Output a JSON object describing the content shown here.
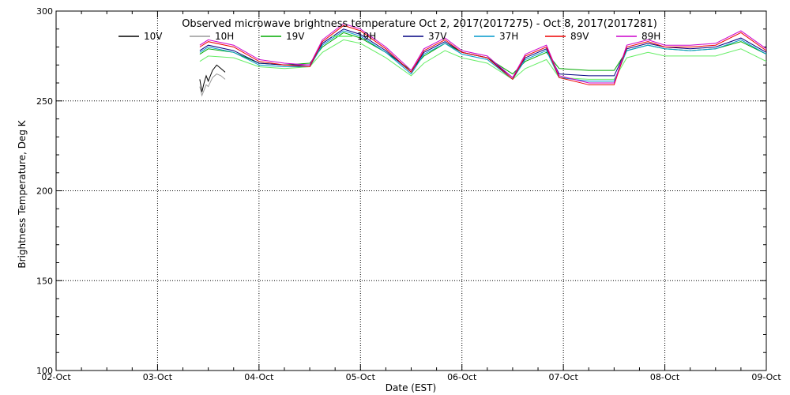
{
  "chart_data": {
    "type": "line",
    "title": "Observed microwave brightness temperature Oct  2, 2017(2017275) - Oct  8, 2017(2017281)",
    "xlabel": "Date (EST)",
    "ylabel": "Brightness Temperature, Deg K",
    "ylim": [
      100,
      300
    ],
    "xlim": [
      "2017-10-02",
      "2017-10-09"
    ],
    "x_ticks": [
      "02-Oct",
      "03-Oct",
      "04-Oct",
      "05-Oct",
      "06-Oct",
      "07-Oct",
      "08-Oct",
      "09-Oct"
    ],
    "y_ticks": [
      100,
      150,
      200,
      250,
      300
    ],
    "grid": true,
    "legend_position": "top",
    "series": [
      {
        "name": "10V",
        "color": "#000000",
        "points": [
          [
            "2017-10-03 10:00",
            262
          ],
          [
            "2017-10-03 10:30",
            255
          ],
          [
            "2017-10-03 11:00",
            260
          ],
          [
            "2017-10-03 11:30",
            264
          ],
          [
            "2017-10-03 12:00",
            261
          ],
          [
            "2017-10-03 13:00",
            267
          ],
          [
            "2017-10-03 14:00",
            270
          ],
          [
            "2017-10-03 15:00",
            268
          ],
          [
            "2017-10-03 16:00",
            266
          ]
        ]
      },
      {
        "name": "10H",
        "color": "#999999",
        "points": [
          [
            "2017-10-03 10:00",
            258
          ],
          [
            "2017-10-03 10:30",
            253
          ],
          [
            "2017-10-03 11:00",
            256
          ],
          [
            "2017-10-03 11:30",
            259
          ],
          [
            "2017-10-03 12:00",
            258
          ],
          [
            "2017-10-03 13:00",
            263
          ],
          [
            "2017-10-03 14:00",
            265
          ],
          [
            "2017-10-03 15:00",
            264
          ],
          [
            "2017-10-03 16:00",
            262
          ]
        ]
      },
      {
        "name": "19V",
        "color": "#00aa00",
        "points": [
          [
            "2017-10-03 10:00",
            276
          ],
          [
            "2017-10-03 12:00",
            279
          ],
          [
            "2017-10-03 18:00",
            277
          ],
          [
            "2017-10-04 00:00",
            271
          ],
          [
            "2017-10-04 06:00",
            270
          ],
          [
            "2017-10-04 12:00",
            271
          ],
          [
            "2017-10-04 15:00",
            280
          ],
          [
            "2017-10-04 20:00",
            288
          ],
          [
            "2017-10-05 00:00",
            285
          ],
          [
            "2017-10-05 06:00",
            277
          ],
          [
            "2017-10-05 12:00",
            267
          ],
          [
            "2017-10-05 15:00",
            275
          ],
          [
            "2017-10-05 20:00",
            282
          ],
          [
            "2017-10-06 00:00",
            277
          ],
          [
            "2017-10-06 06:00",
            274
          ],
          [
            "2017-10-06 12:00",
            265
          ],
          [
            "2017-10-06 15:00",
            272
          ],
          [
            "2017-10-06 20:00",
            277
          ],
          [
            "2017-10-06 23:00",
            268
          ],
          [
            "2017-10-07 06:00",
            267
          ],
          [
            "2017-10-07 12:00",
            267
          ],
          [
            "2017-10-07 15:00",
            278
          ],
          [
            "2017-10-07 20:00",
            281
          ],
          [
            "2017-10-08 00:00",
            279
          ],
          [
            "2017-10-08 06:00",
            278
          ],
          [
            "2017-10-08 12:00",
            279
          ],
          [
            "2017-10-08 18:00",
            283
          ],
          [
            "2017-10-09 00:00",
            276
          ]
        ]
      },
      {
        "name": "19H",
        "color": "#66ee66",
        "points": [
          [
            "2017-10-03 10:00",
            272
          ],
          [
            "2017-10-03 12:00",
            275
          ],
          [
            "2017-10-03 18:00",
            274
          ],
          [
            "2017-10-04 00:00",
            269
          ],
          [
            "2017-10-04 06:00",
            268
          ],
          [
            "2017-10-04 12:00",
            269
          ],
          [
            "2017-10-04 15:00",
            277
          ],
          [
            "2017-10-04 20:00",
            284
          ],
          [
            "2017-10-05 00:00",
            282
          ],
          [
            "2017-10-05 06:00",
            274
          ],
          [
            "2017-10-05 12:00",
            264
          ],
          [
            "2017-10-05 15:00",
            271
          ],
          [
            "2017-10-05 20:00",
            278
          ],
          [
            "2017-10-06 00:00",
            274
          ],
          [
            "2017-10-06 06:00",
            271
          ],
          [
            "2017-10-06 12:00",
            262
          ],
          [
            "2017-10-06 15:00",
            268
          ],
          [
            "2017-10-06 20:00",
            273
          ],
          [
            "2017-10-06 23:00",
            263
          ],
          [
            "2017-10-07 06:00",
            262
          ],
          [
            "2017-10-07 12:00",
            262
          ],
          [
            "2017-10-07 15:00",
            274
          ],
          [
            "2017-10-07 20:00",
            277
          ],
          [
            "2017-10-08 00:00",
            275
          ],
          [
            "2017-10-08 06:00",
            275
          ],
          [
            "2017-10-08 12:00",
            275
          ],
          [
            "2017-10-08 18:00",
            279
          ],
          [
            "2017-10-09 00:00",
            272
          ]
        ]
      },
      {
        "name": "37V",
        "color": "#000080",
        "points": [
          [
            "2017-10-03 10:00",
            278
          ],
          [
            "2017-10-03 12:00",
            281
          ],
          [
            "2017-10-03 18:00",
            278
          ],
          [
            "2017-10-04 00:00",
            271
          ],
          [
            "2017-10-04 06:00",
            270
          ],
          [
            "2017-10-04 12:00",
            270
          ],
          [
            "2017-10-04 15:00",
            282
          ],
          [
            "2017-10-04 20:00",
            290
          ],
          [
            "2017-10-05 00:00",
            287
          ],
          [
            "2017-10-05 06:00",
            278
          ],
          [
            "2017-10-05 12:00",
            266
          ],
          [
            "2017-10-05 15:00",
            277
          ],
          [
            "2017-10-05 20:00",
            283
          ],
          [
            "2017-10-06 00:00",
            277
          ],
          [
            "2017-10-06 06:00",
            274
          ],
          [
            "2017-10-06 12:00",
            263
          ],
          [
            "2017-10-06 15:00",
            274
          ],
          [
            "2017-10-06 20:00",
            279
          ],
          [
            "2017-10-06 23:00",
            265
          ],
          [
            "2017-10-07 06:00",
            264
          ],
          [
            "2017-10-07 12:00",
            264
          ],
          [
            "2017-10-07 15:00",
            279
          ],
          [
            "2017-10-07 20:00",
            282
          ],
          [
            "2017-10-08 00:00",
            280
          ],
          [
            "2017-10-08 06:00",
            279
          ],
          [
            "2017-10-08 12:00",
            280
          ],
          [
            "2017-10-08 18:00",
            285
          ],
          [
            "2017-10-09 00:00",
            277
          ]
        ]
      },
      {
        "name": "37H",
        "color": "#0099cc",
        "points": [
          [
            "2017-10-03 10:00",
            277
          ],
          [
            "2017-10-03 12:00",
            280
          ],
          [
            "2017-10-03 18:00",
            277
          ],
          [
            "2017-10-04 00:00",
            270
          ],
          [
            "2017-10-04 06:00",
            269
          ],
          [
            "2017-10-04 12:00",
            269
          ],
          [
            "2017-10-04 15:00",
            281
          ],
          [
            "2017-10-04 20:00",
            289
          ],
          [
            "2017-10-05 00:00",
            286
          ],
          [
            "2017-10-05 06:00",
            277
          ],
          [
            "2017-10-05 12:00",
            265
          ],
          [
            "2017-10-05 15:00",
            276
          ],
          [
            "2017-10-05 20:00",
            282
          ],
          [
            "2017-10-06 00:00",
            276
          ],
          [
            "2017-10-06 06:00",
            273
          ],
          [
            "2017-10-06 12:00",
            262
          ],
          [
            "2017-10-06 15:00",
            273
          ],
          [
            "2017-10-06 20:00",
            278
          ],
          [
            "2017-10-06 23:00",
            263
          ],
          [
            "2017-10-07 06:00",
            261
          ],
          [
            "2017-10-07 12:00",
            261
          ],
          [
            "2017-10-07 15:00",
            278
          ],
          [
            "2017-10-07 20:00",
            281
          ],
          [
            "2017-10-08 00:00",
            279
          ],
          [
            "2017-10-08 06:00",
            278
          ],
          [
            "2017-10-08 12:00",
            279
          ],
          [
            "2017-10-08 18:00",
            284
          ],
          [
            "2017-10-09 00:00",
            276
          ]
        ]
      },
      {
        "name": "89V",
        "color": "#ee0000",
        "points": [
          [
            "2017-10-03 10:00",
            280
          ],
          [
            "2017-10-03 12:00",
            283
          ],
          [
            "2017-10-03 18:00",
            280
          ],
          [
            "2017-10-04 00:00",
            272
          ],
          [
            "2017-10-04 06:00",
            270
          ],
          [
            "2017-10-04 12:00",
            269
          ],
          [
            "2017-10-04 15:00",
            283
          ],
          [
            "2017-10-04 20:00",
            292
          ],
          [
            "2017-10-05 00:00",
            289
          ],
          [
            "2017-10-05 06:00",
            279
          ],
          [
            "2017-10-05 12:00",
            266
          ],
          [
            "2017-10-05 15:00",
            278
          ],
          [
            "2017-10-05 20:00",
            284
          ],
          [
            "2017-10-06 00:00",
            277
          ],
          [
            "2017-10-06 06:00",
            274
          ],
          [
            "2017-10-06 12:00",
            262
          ],
          [
            "2017-10-06 15:00",
            275
          ],
          [
            "2017-10-06 20:00",
            280
          ],
          [
            "2017-10-06 23:00",
            263
          ],
          [
            "2017-10-07 06:00",
            259
          ],
          [
            "2017-10-07 12:00",
            259
          ],
          [
            "2017-10-07 15:00",
            280
          ],
          [
            "2017-10-07 20:00",
            283
          ],
          [
            "2017-10-08 00:00",
            280
          ],
          [
            "2017-10-08 06:00",
            280
          ],
          [
            "2017-10-08 12:00",
            281
          ],
          [
            "2017-10-08 18:00",
            288
          ],
          [
            "2017-10-09 00:00",
            278
          ]
        ]
      },
      {
        "name": "89H",
        "color": "#cc00cc",
        "points": [
          [
            "2017-10-03 10:00",
            281
          ],
          [
            "2017-10-03 12:00",
            284
          ],
          [
            "2017-10-03 18:00",
            281
          ],
          [
            "2017-10-04 00:00",
            273
          ],
          [
            "2017-10-04 06:00",
            271
          ],
          [
            "2017-10-04 12:00",
            270
          ],
          [
            "2017-10-04 15:00",
            284
          ],
          [
            "2017-10-04 20:00",
            293
          ],
          [
            "2017-10-05 00:00",
            290
          ],
          [
            "2017-10-05 06:00",
            280
          ],
          [
            "2017-10-05 12:00",
            267
          ],
          [
            "2017-10-05 15:00",
            279
          ],
          [
            "2017-10-05 20:00",
            285
          ],
          [
            "2017-10-06 00:00",
            278
          ],
          [
            "2017-10-06 06:00",
            275
          ],
          [
            "2017-10-06 12:00",
            263
          ],
          [
            "2017-10-06 15:00",
            276
          ],
          [
            "2017-10-06 20:00",
            281
          ],
          [
            "2017-10-06 23:00",
            264
          ],
          [
            "2017-10-07 06:00",
            260
          ],
          [
            "2017-10-07 12:00",
            260
          ],
          [
            "2017-10-07 15:00",
            281
          ],
          [
            "2017-10-07 20:00",
            284
          ],
          [
            "2017-10-08 00:00",
            281
          ],
          [
            "2017-10-08 06:00",
            281
          ],
          [
            "2017-10-08 12:00",
            282
          ],
          [
            "2017-10-08 18:00",
            289
          ],
          [
            "2017-10-09 00:00",
            279
          ]
        ]
      }
    ]
  }
}
